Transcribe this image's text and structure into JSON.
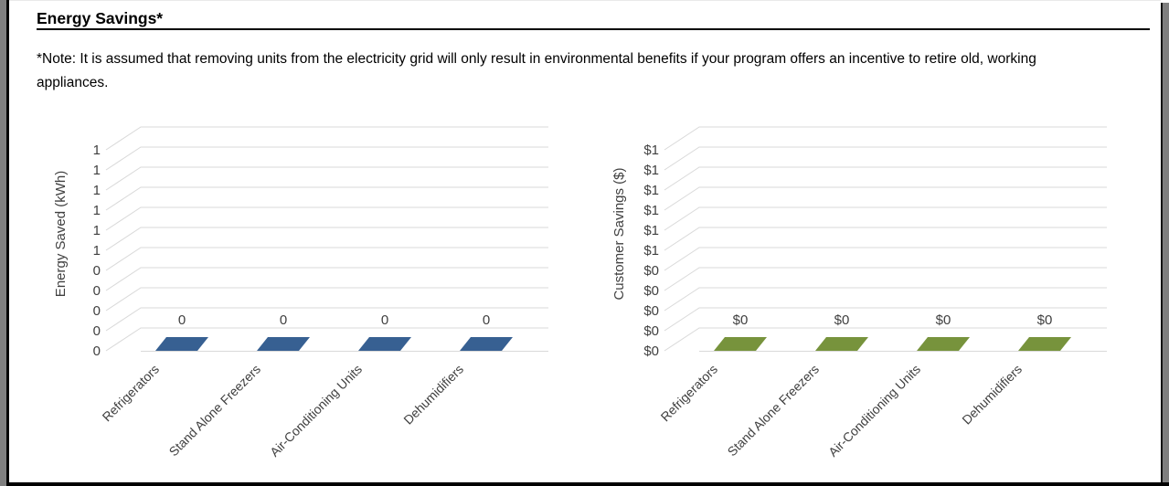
{
  "page": {
    "title": "Energy Savings*",
    "note_line1": "*Note: It is assumed that removing units from the electricity grid will only result in environmental benefits if your program offers an incentive to retire old, working",
    "note_line2": "appliances."
  },
  "colors": {
    "bar_blue": "#376092",
    "bar_green": "#77933C",
    "gridline": "#D9D9D9",
    "chart_text": "#404040",
    "frame_gray": "#7F7F7F",
    "frame_black": "#000000"
  },
  "chart_data": [
    {
      "type": "bar",
      "style": "3d-flat-columns",
      "title": "",
      "xlabel": "",
      "ylabel": "Energy Saved (kWh)",
      "categories": [
        "Refrigerators",
        "Stand Alone Freezers",
        "Air-Conditioning Units",
        "Dehumidifiers"
      ],
      "values": [
        0,
        0,
        0,
        0
      ],
      "data_labels": [
        "0",
        "0",
        "0",
        "0"
      ],
      "ylim": [
        0,
        1
      ],
      "ytick_step": 0.1,
      "ytick_values": [
        1.0,
        0.9,
        0.8,
        0.7,
        0.6,
        0.5,
        0.4,
        0.3,
        0.2,
        0.1,
        0.0
      ],
      "ytick_labels": [
        "1",
        "1",
        "1",
        "1",
        "1",
        "1",
        "0",
        "0",
        "0",
        "0",
        "0"
      ],
      "bar_color": "#376092",
      "grid": true,
      "legend": "none"
    },
    {
      "type": "bar",
      "style": "3d-flat-columns",
      "title": "",
      "xlabel": "",
      "ylabel": "Customer Savings ($)",
      "categories": [
        "Refrigerators",
        "Stand Alone Freezers",
        "Air-Conditioning Units",
        "Dehumidifiers"
      ],
      "values": [
        0,
        0,
        0,
        0
      ],
      "data_labels": [
        "$0",
        "$0",
        "$0",
        "$0"
      ],
      "ylim": [
        0,
        1
      ],
      "ytick_step": 0.1,
      "ytick_values": [
        1.0,
        0.9,
        0.8,
        0.7,
        0.6,
        0.5,
        0.4,
        0.3,
        0.2,
        0.1,
        0.0
      ],
      "ytick_labels": [
        "$1",
        "$1",
        "$1",
        "$1",
        "$1",
        "$1",
        "$0",
        "$0",
        "$0",
        "$0",
        "$0"
      ],
      "bar_color": "#77933C",
      "grid": true,
      "legend": "none"
    }
  ]
}
